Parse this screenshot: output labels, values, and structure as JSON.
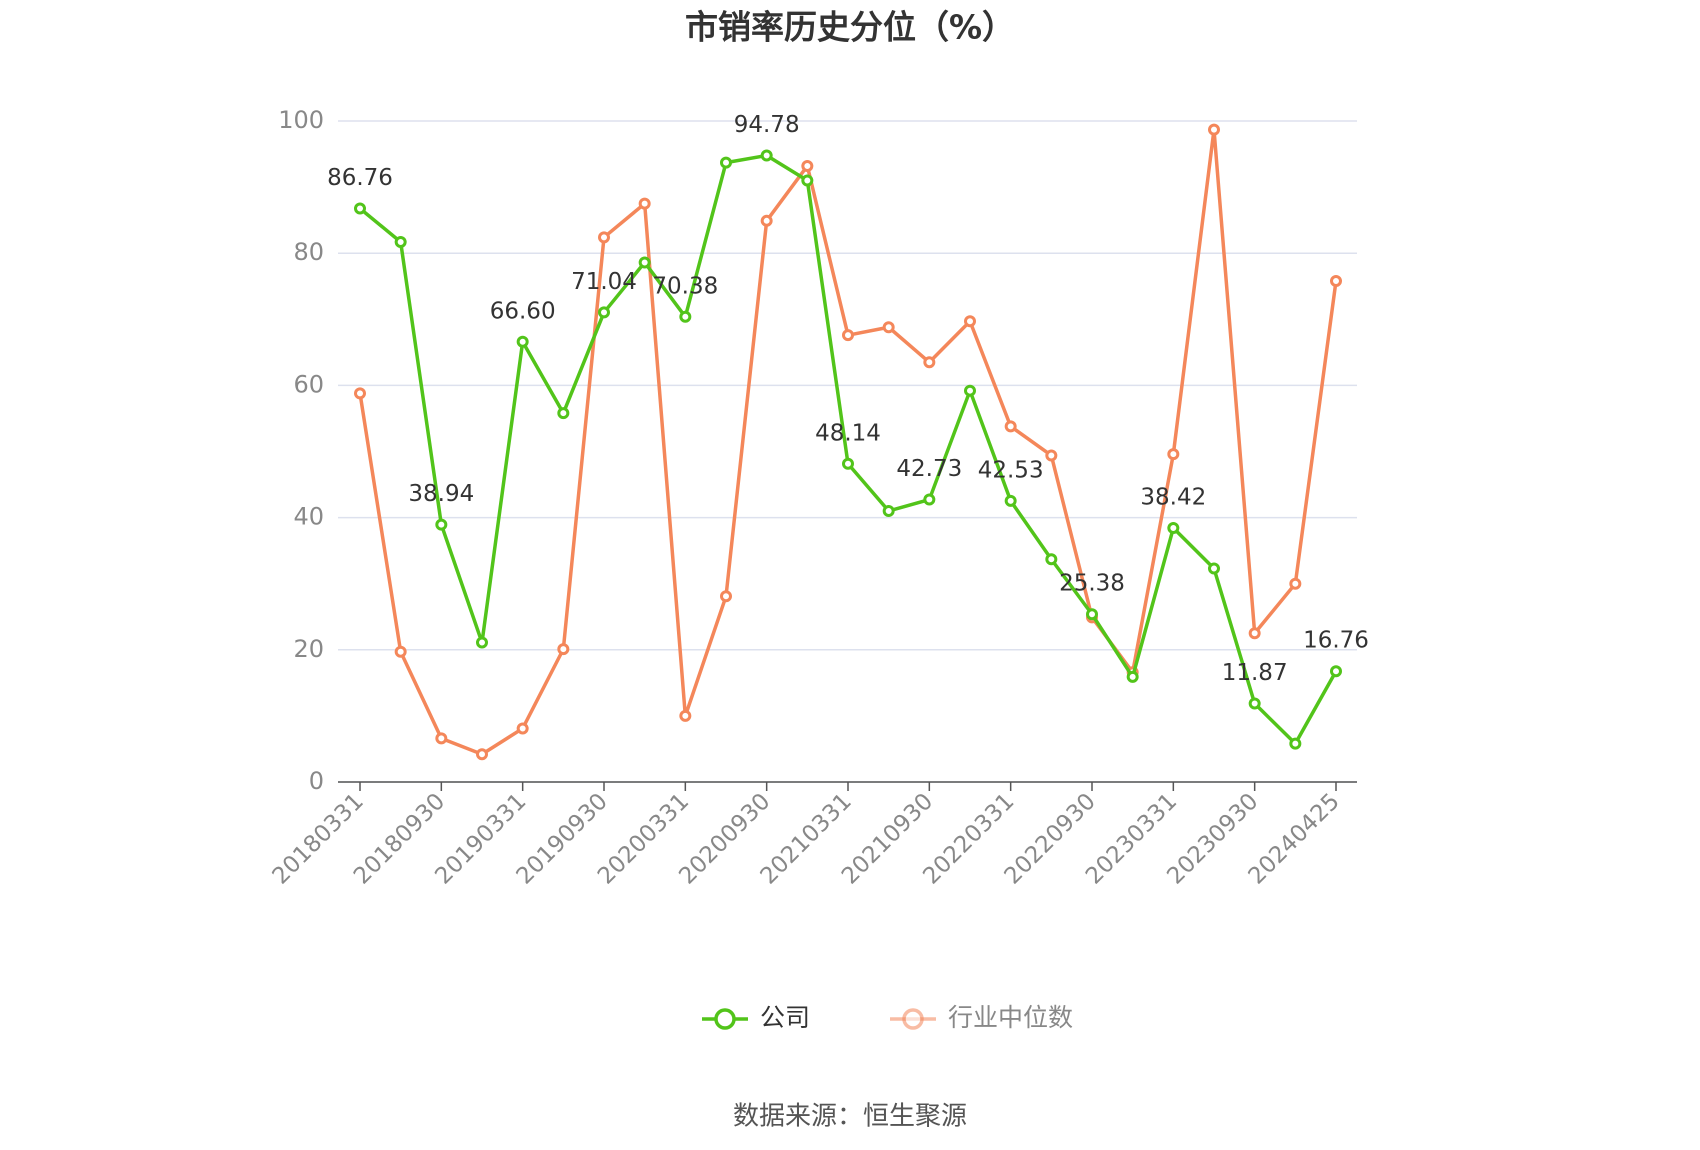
{
  "chart_data": {
    "type": "line",
    "title": "市销率历史分位（%）",
    "source": "数据来源：恒生聚源",
    "categories": [
      "20180331",
      null,
      "20180930",
      null,
      "20190331",
      null,
      "20190930",
      null,
      "20200331",
      null,
      "20200930",
      null,
      "20210331",
      null,
      "20210930",
      null,
      "20220331",
      null,
      "20220930",
      null,
      "20230331",
      null,
      "20230930",
      null,
      "20240425"
    ],
    "series": [
      {
        "name": "公司",
        "color": "#52c41a",
        "values": [
          86.76,
          81.7,
          38.94,
          21.1,
          66.6,
          55.8,
          71.04,
          78.6,
          70.38,
          93.7,
          94.78,
          91.0,
          48.14,
          41.0,
          42.73,
          59.2,
          42.53,
          33.7,
          25.38,
          15.9,
          38.42,
          32.3,
          11.87,
          5.8,
          16.76
        ],
        "value_labels": [
          "86.76",
          null,
          "38.94",
          null,
          "66.60",
          null,
          "71.04",
          null,
          "70.38",
          null,
          "94.78",
          null,
          "48.14",
          null,
          "42.73",
          null,
          "42.53",
          null,
          "25.38",
          null,
          "38.42",
          null,
          "11.87",
          null,
          "16.76"
        ]
      },
      {
        "name": "行业中位数",
        "color": "#f4875a",
        "values": [
          58.8,
          19.7,
          6.6,
          4.2,
          8.1,
          20.1,
          82.4,
          87.5,
          10.0,
          28.1,
          84.9,
          93.2,
          67.6,
          68.8,
          63.5,
          69.7,
          53.8,
          49.4,
          24.9,
          16.6,
          49.6,
          98.7,
          22.5,
          30.0,
          75.8
        ]
      }
    ],
    "ylim": [
      0,
      100
    ],
    "yticks": [
      0,
      20,
      40,
      60,
      80,
      100
    ],
    "grid": true
  }
}
